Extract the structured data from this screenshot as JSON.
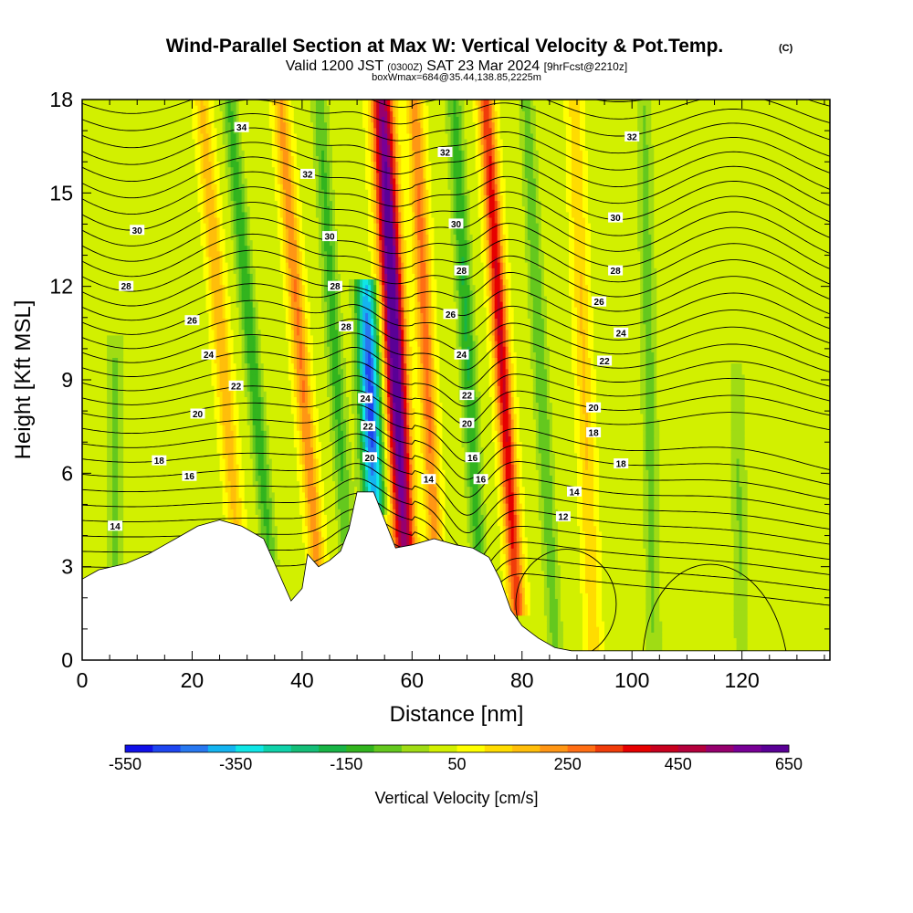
{
  "header": {
    "title": "Wind-Parallel Section at Max W: Vertical Velocity & Pot.Temp.",
    "copyright": "(C)",
    "valid_prefix": "Valid 1200 JST",
    "valid_utc": "(0300Z)",
    "valid_date": "SAT 23 Mar 2024",
    "forecast": "[9hrFcst@2210z]",
    "box_info": "boxWmax=684@35.44,138.85,2225m"
  },
  "chart_data": {
    "type": "heatmap",
    "xlabel": "Distance [nm]",
    "ylabel": "Height [Kft MSL]",
    "xlim": [
      0,
      136
    ],
    "ylim": [
      0,
      18
    ],
    "x_ticks": [
      "0",
      "20",
      "40",
      "60",
      "80",
      "100",
      "120"
    ],
    "y_ticks": [
      "0",
      "3",
      "6",
      "9",
      "12",
      "15",
      "18"
    ],
    "colorbar": {
      "title": "Vertical Velocity [cm/s]",
      "min": -550,
      "max": 650,
      "labels": [
        "-550",
        "-350",
        "-150",
        "50",
        "250",
        "450",
        "650"
      ],
      "colors": [
        "#1010e8",
        "#1e46f0",
        "#2878f0",
        "#14b4f0",
        "#10e6e6",
        "#10d2aa",
        "#14be78",
        "#18b446",
        "#32b41e",
        "#64c81e",
        "#a0dc14",
        "#d2f000",
        "#ffff00",
        "#ffdc00",
        "#ffbe0a",
        "#ff9614",
        "#ff6e14",
        "#f03c0a",
        "#e60000",
        "#c8001e",
        "#b4003c",
        "#96006e",
        "#780096",
        "#5a0096"
      ]
    },
    "terrain_profile": [
      {
        "x": 0,
        "y": 2.6
      },
      {
        "x": 3,
        "y": 2.9
      },
      {
        "x": 8,
        "y": 3.1
      },
      {
        "x": 12,
        "y": 3.4
      },
      {
        "x": 15,
        "y": 3.7
      },
      {
        "x": 18,
        "y": 4.0
      },
      {
        "x": 21,
        "y": 4.3
      },
      {
        "x": 25,
        "y": 4.5
      },
      {
        "x": 29,
        "y": 4.3
      },
      {
        "x": 33,
        "y": 3.9
      },
      {
        "x": 36,
        "y": 2.7
      },
      {
        "x": 38,
        "y": 1.9
      },
      {
        "x": 40,
        "y": 2.3
      },
      {
        "x": 41,
        "y": 3.4
      },
      {
        "x": 43,
        "y": 3.0
      },
      {
        "x": 45,
        "y": 3.2
      },
      {
        "x": 47,
        "y": 3.5
      },
      {
        "x": 48.5,
        "y": 4.2
      },
      {
        "x": 50,
        "y": 5.4
      },
      {
        "x": 53,
        "y": 5.4
      },
      {
        "x": 55,
        "y": 4.5
      },
      {
        "x": 57,
        "y": 3.6
      },
      {
        "x": 60,
        "y": 3.7
      },
      {
        "x": 64,
        "y": 3.9
      },
      {
        "x": 68,
        "y": 3.7
      },
      {
        "x": 71,
        "y": 3.6
      },
      {
        "x": 74,
        "y": 3.3
      },
      {
        "x": 76,
        "y": 2.6
      },
      {
        "x": 78,
        "y": 1.6
      },
      {
        "x": 80,
        "y": 1.1
      },
      {
        "x": 83,
        "y": 0.7
      },
      {
        "x": 86,
        "y": 0.4
      },
      {
        "x": 89,
        "y": 0.3
      },
      {
        "x": 95,
        "y": 0.3
      },
      {
        "x": 136,
        "y": 0.3
      }
    ],
    "w_features": [
      {
        "x": 58.5,
        "y_base": 4.0,
        "y_top": 18,
        "peak": 650,
        "lean": 0.28
      },
      {
        "x": 53,
        "y_base": 5.2,
        "y_top": 11.8,
        "peak": -520,
        "lean": 0.2
      },
      {
        "x": 79,
        "y_base": 2.0,
        "y_top": 18,
        "peak": 380,
        "lean": 0.35
      },
      {
        "x": 64,
        "y_base": 4.0,
        "y_top": 18,
        "peak": 240,
        "lean": 0.25
      },
      {
        "x": 72,
        "y_base": 3.5,
        "y_top": 18,
        "peak": -190,
        "lean": 0.3
      },
      {
        "x": 48,
        "y_base": 4.0,
        "y_top": 18,
        "peak": -160,
        "lean": 0.35
      },
      {
        "x": 43,
        "y_base": 2.5,
        "y_top": 18,
        "peak": 220,
        "lean": 0.45
      },
      {
        "x": 34,
        "y_base": 3.5,
        "y_top": 18,
        "peak": -180,
        "lean": 0.5
      },
      {
        "x": 28,
        "y_base": 4.2,
        "y_top": 18,
        "peak": 160,
        "lean": 0.45
      },
      {
        "x": 86,
        "y_base": 0.5,
        "y_top": 18,
        "peak": -130,
        "lean": 0.3
      },
      {
        "x": 93,
        "y_base": 0.5,
        "y_top": 18,
        "peak": 120,
        "lean": 0.2
      },
      {
        "x": 104,
        "y_base": 0.3,
        "y_top": 18,
        "peak": -110,
        "lean": 0.1
      },
      {
        "x": 6,
        "y_base": 2.5,
        "y_top": 10,
        "peak": -110,
        "lean": 0.0
      },
      {
        "x": 120,
        "y_base": 0.3,
        "y_top": 9,
        "peak": -90,
        "lean": 0.1
      }
    ],
    "theta_labels": [
      {
        "label": "34",
        "x": 29,
        "y": 17.1
      },
      {
        "label": "32",
        "x": 41,
        "y": 15.6
      },
      {
        "label": "32",
        "x": 66,
        "y": 16.3
      },
      {
        "label": "32",
        "x": 100,
        "y": 16.8
      },
      {
        "label": "30",
        "x": 10,
        "y": 13.8
      },
      {
        "label": "30",
        "x": 45,
        "y": 13.6
      },
      {
        "label": "30",
        "x": 68,
        "y": 14.0
      },
      {
        "label": "30",
        "x": 97,
        "y": 14.2
      },
      {
        "label": "28",
        "x": 8,
        "y": 12.0
      },
      {
        "label": "28",
        "x": 46,
        "y": 12.0
      },
      {
        "label": "28",
        "x": 69,
        "y": 12.5
      },
      {
        "label": "28",
        "x": 97,
        "y": 12.5
      },
      {
        "label": "26",
        "x": 20,
        "y": 10.9
      },
      {
        "label": "28",
        "x": 48,
        "y": 10.7
      },
      {
        "label": "26",
        "x": 67,
        "y": 11.1
      },
      {
        "label": "26",
        "x": 94,
        "y": 11.5
      },
      {
        "label": "24",
        "x": 23,
        "y": 9.8
      },
      {
        "label": "24",
        "x": 69,
        "y": 9.8
      },
      {
        "label": "24",
        "x": 98,
        "y": 10.5
      },
      {
        "label": "22",
        "x": 28,
        "y": 8.8
      },
      {
        "label": "22",
        "x": 70,
        "y": 8.5
      },
      {
        "label": "22",
        "x": 95,
        "y": 9.6
      },
      {
        "label": "24",
        "x": 51.5,
        "y": 8.4
      },
      {
        "label": "22",
        "x": 52,
        "y": 7.5
      },
      {
        "label": "20",
        "x": 52.3,
        "y": 6.5
      },
      {
        "label": "20",
        "x": 21,
        "y": 7.9
      },
      {
        "label": "20",
        "x": 70,
        "y": 7.6
      },
      {
        "label": "20",
        "x": 93,
        "y": 8.1
      },
      {
        "label": "18",
        "x": 14,
        "y": 6.4
      },
      {
        "label": "16",
        "x": 19.5,
        "y": 5.9
      },
      {
        "label": "16",
        "x": 71,
        "y": 6.5
      },
      {
        "label": "16",
        "x": 72.5,
        "y": 5.8
      },
      {
        "label": "18",
        "x": 93,
        "y": 7.3
      },
      {
        "label": "18",
        "x": 98,
        "y": 6.3
      },
      {
        "label": "14",
        "x": 6,
        "y": 4.3
      },
      {
        "label": "14",
        "x": 63,
        "y": 5.8
      },
      {
        "label": "14",
        "x": 89.5,
        "y": 5.4
      },
      {
        "label": "12",
        "x": 87.5,
        "y": 4.6
      }
    ]
  }
}
